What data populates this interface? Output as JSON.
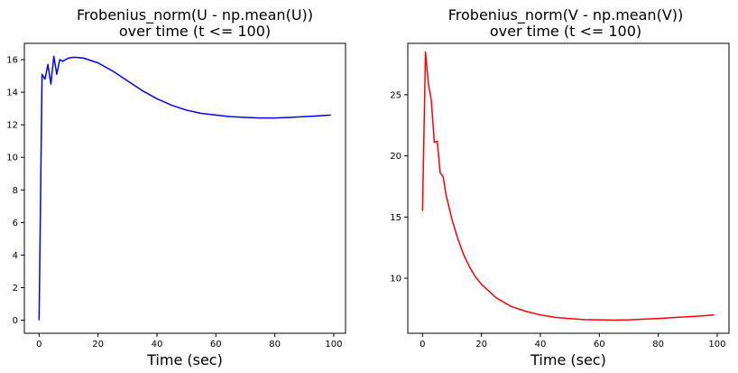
{
  "chart_data": [
    {
      "type": "line",
      "title": [
        "Frobenius_norm(U - np.mean(U))",
        "over time (t <= 100)"
      ],
      "xlabel": "Time (sec)",
      "ylabel": "",
      "xlim": [
        -5,
        104
      ],
      "ylim": [
        -0.8,
        17
      ],
      "xticks": [
        0,
        20,
        40,
        60,
        80,
        100
      ],
      "yticks": [
        0,
        2,
        4,
        6,
        8,
        10,
        12,
        14,
        16
      ],
      "grid": false,
      "color": "#0000ff",
      "series": [
        {
          "x": [
            0,
            1,
            2,
            3,
            4,
            5,
            6,
            7,
            8,
            10,
            12,
            15,
            20,
            25,
            30,
            35,
            40,
            45,
            50,
            55,
            60,
            65,
            70,
            75,
            80,
            85,
            90,
            95,
            99
          ],
          "y": [
            0,
            15.1,
            14.8,
            15.7,
            14.5,
            16.2,
            15.1,
            16.0,
            15.9,
            16.1,
            16.15,
            16.1,
            15.8,
            15.3,
            14.7,
            14.1,
            13.6,
            13.2,
            12.9,
            12.7,
            12.6,
            12.5,
            12.45,
            12.42,
            12.42,
            12.45,
            12.5,
            12.55,
            12.6
          ]
        }
      ]
    },
    {
      "type": "line",
      "title": [
        "Frobenius_norm(V - np.mean(V))",
        "over time (t <= 100)"
      ],
      "xlabel": "Time (sec)",
      "ylabel": "",
      "xlim": [
        -5,
        104
      ],
      "ylim": [
        5.5,
        29.2
      ],
      "xticks": [
        0,
        20,
        40,
        60,
        80,
        100
      ],
      "yticks": [
        10,
        15,
        20,
        25
      ],
      "grid": false,
      "color": "#ff0000",
      "series": [
        {
          "x": [
            0,
            1,
            2,
            3,
            4,
            5,
            6,
            7,
            8,
            10,
            12,
            14,
            16,
            18,
            20,
            25,
            30,
            35,
            40,
            45,
            50,
            55,
            60,
            65,
            70,
            75,
            80,
            85,
            90,
            95,
            99
          ],
          "y": [
            15.5,
            28.5,
            25.9,
            24.5,
            21.1,
            21.2,
            18.6,
            18.3,
            16.8,
            14.8,
            13.2,
            11.9,
            10.9,
            10.1,
            9.5,
            8.4,
            7.7,
            7.3,
            7.0,
            6.8,
            6.7,
            6.62,
            6.6,
            6.58,
            6.6,
            6.65,
            6.7,
            6.78,
            6.85,
            6.92,
            7.0
          ]
        }
      ]
    }
  ]
}
